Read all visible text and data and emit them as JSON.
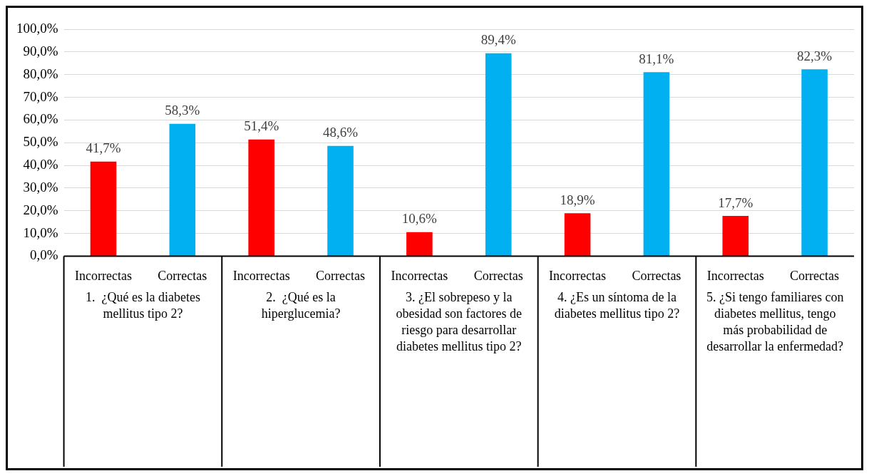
{
  "chart_data": {
    "type": "bar",
    "categories": [
      "Incorrectas",
      "Correctas",
      "Incorrectas",
      "Correctas",
      "Incorrectas",
      "Correctas",
      "Incorrectas",
      "Correctas",
      "Incorrectas",
      "Correctas"
    ],
    "values": [
      41.7,
      58.3,
      51.4,
      48.6,
      10.6,
      89.4,
      18.9,
      81.1,
      17.7,
      82.3
    ],
    "colors": [
      "#ff0000",
      "#00b0f0",
      "#ff0000",
      "#00b0f0",
      "#ff0000",
      "#00b0f0",
      "#ff0000",
      "#00b0f0",
      "#ff0000",
      "#00b0f0"
    ],
    "value_labels": [
      "41,7%",
      "58,3%",
      "51,4%",
      "48,6%",
      "10,6%",
      "89,4%",
      "18,9%",
      "81,1%",
      "17,7%",
      "82,3%"
    ],
    "ylim": [
      0,
      100
    ],
    "yticks": [
      {
        "value": 0,
        "label": "0,0%"
      },
      {
        "value": 10,
        "label": "10,0%"
      },
      {
        "value": 20,
        "label": "20,0%"
      },
      {
        "value": 30,
        "label": "30,0%"
      },
      {
        "value": 40,
        "label": "40,0%"
      },
      {
        "value": 50,
        "label": "50,0%"
      },
      {
        "value": 60,
        "label": "60,0%"
      },
      {
        "value": 70,
        "label": "70,0%"
      },
      {
        "value": 80,
        "label": "80,0%"
      },
      {
        "value": 90,
        "label": "90,0%"
      },
      {
        "value": 100,
        "label": "100,0%"
      }
    ],
    "grid": "y",
    "legend": false,
    "annotations": [
      "1.  ¿Qué es la diabetes mellitus tipo 2?",
      "2.  ¿Qué es la hiperglucemia?",
      "3. ¿El sobrepeso y la obesidad son factores de riesgo para desarrollar diabetes mellitus tipo 2?",
      "4. ¿Es un síntoma de la diabetes mellitus tipo 2?",
      "5. ¿Si tengo familiares con diabetes mellitus, tengo más probabilidad de desarrollar la enfermedad?"
    ]
  }
}
